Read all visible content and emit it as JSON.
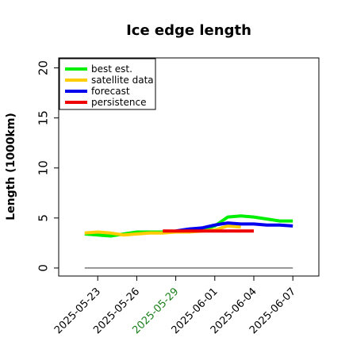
{
  "chart_data": {
    "type": "line",
    "title": "Ice edge length",
    "xlabel": "",
    "ylabel": "Length (1000km)",
    "ylim": [
      -0.8,
      21
    ],
    "xlim": [
      "2025-05-20",
      "2025-06-09"
    ],
    "yticks": [
      "0",
      "5",
      "10",
      "15",
      "20"
    ],
    "xticks": [
      {
        "label": "2025-05-23",
        "date": "2025-05-23",
        "color": "#000000"
      },
      {
        "label": "2025-05-26",
        "date": "2025-05-26",
        "color": "#000000"
      },
      {
        "label": "2025-05-29",
        "date": "2025-05-29",
        "color": "#1a7f1a"
      },
      {
        "label": "2025-06-01",
        "date": "2025-06-01",
        "color": "#000000"
      },
      {
        "label": "2025-06-04",
        "date": "2025-06-04",
        "color": "#000000"
      },
      {
        "label": "2025-06-07",
        "date": "2025-06-07",
        "color": "#000000"
      }
    ],
    "legend_position": "top-left",
    "grid": false,
    "series": [
      {
        "name": "best est.",
        "color": "#00ee00",
        "x": [
          "2025-05-22",
          "2025-05-23",
          "2025-05-24",
          "2025-05-25",
          "2025-05-26",
          "2025-05-27",
          "2025-05-28",
          "2025-05-29",
          "2025-05-30",
          "2025-05-31",
          "2025-06-01",
          "2025-06-02",
          "2025-06-03",
          "2025-06-04",
          "2025-06-05",
          "2025-06-06",
          "2025-06-07"
        ],
        "values": [
          3.4,
          3.3,
          3.2,
          3.4,
          3.6,
          3.6,
          3.6,
          3.6,
          3.7,
          3.8,
          4.2,
          5.1,
          5.2,
          5.1,
          4.9,
          4.7,
          4.7
        ]
      },
      {
        "name": "satellite data",
        "color": "#ffcc00",
        "x": [
          "2025-05-22",
          "2025-05-23",
          "2025-05-24",
          "2025-05-25",
          "2025-05-26",
          "2025-05-27",
          "2025-05-28",
          "2025-05-29",
          "2025-05-30",
          "2025-05-31",
          "2025-06-01",
          "2025-06-02",
          "2025-06-03"
        ],
        "values": [
          3.5,
          3.6,
          3.5,
          3.3,
          3.4,
          3.5,
          3.5,
          3.6,
          3.6,
          3.7,
          3.8,
          4.2,
          4.1
        ]
      },
      {
        "name": "forecast",
        "color": "#0000ee",
        "x": [
          "2025-05-29",
          "2025-05-30",
          "2025-05-31",
          "2025-06-01",
          "2025-06-02",
          "2025-06-03",
          "2025-06-04",
          "2025-06-05",
          "2025-06-06",
          "2025-06-07"
        ],
        "values": [
          3.7,
          3.9,
          4.0,
          4.3,
          4.5,
          4.4,
          4.4,
          4.3,
          4.3,
          4.2
        ]
      },
      {
        "name": "persistence",
        "color": "#ee0000",
        "x": [
          "2025-05-28",
          "2025-05-29",
          "2025-05-30",
          "2025-05-31",
          "2025-06-01",
          "2025-06-02",
          "2025-06-03",
          "2025-06-04"
        ],
        "values": [
          3.7,
          3.7,
          3.7,
          3.7,
          3.7,
          3.7,
          3.7,
          3.7
        ]
      }
    ],
    "reference_line": {
      "value": 0,
      "from": "2025-05-22",
      "to": "2025-06-07",
      "color": "#777777"
    }
  }
}
